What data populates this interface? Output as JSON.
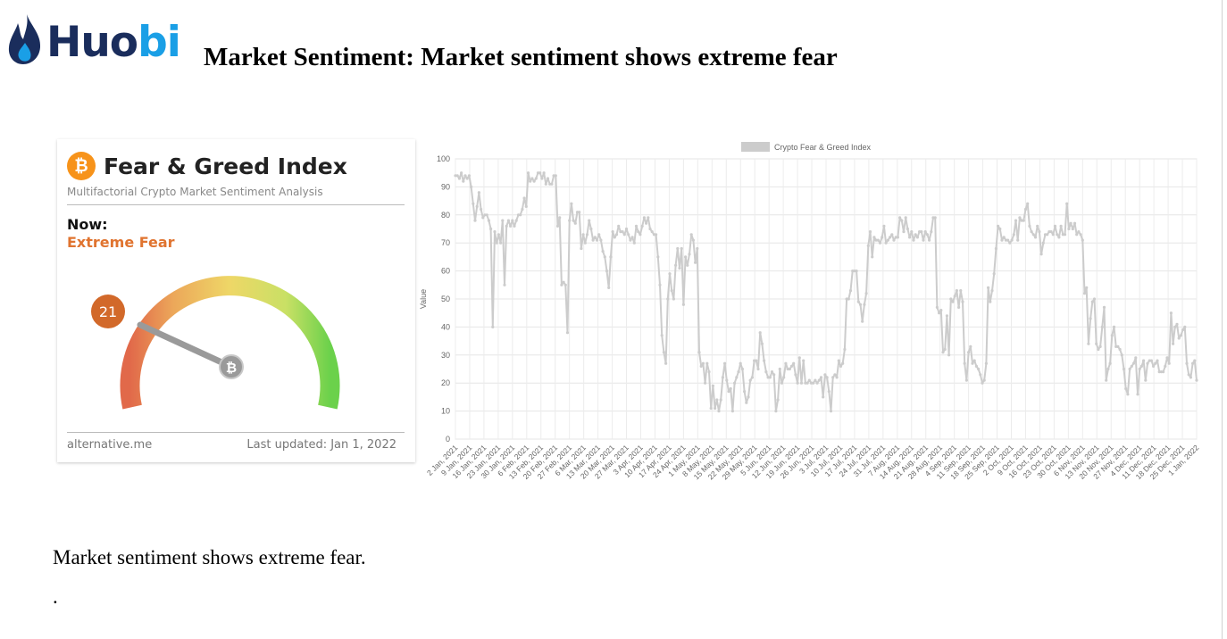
{
  "logo": {
    "name": "Huobi",
    "icon": "flame-drop-icon",
    "colors": {
      "primary": "#1a2d5c",
      "accent": "#1a9fe6"
    }
  },
  "slide": {
    "title": "Market Sentiment: Market sentiment shows extreme fear"
  },
  "fear_greed_card": {
    "title": "Fear & Greed Index",
    "subtitle": "Multifactorial Crypto Market Sentiment Analysis",
    "now_label": "Now:",
    "now_value": "Extreme Fear",
    "index_value": 21,
    "source": "alternative.me",
    "last_updated": "Last updated: Jan 1, 2022",
    "colors": {
      "accent": "#e07430",
      "badge": "#d2692a",
      "bitcoin": "#f7931a"
    }
  },
  "chart_data": {
    "type": "line",
    "legend": "Crypto Fear & Greed Index",
    "legend_position": "top",
    "ylabel": "Value",
    "ylim": [
      0,
      100
    ],
    "yticks": [
      0,
      10,
      20,
      30,
      40,
      50,
      60,
      70,
      80,
      90,
      100
    ],
    "grid": true,
    "color": "#cccccc",
    "x_tick_labels": [
      "2 Jan, 2021",
      "9 Jan, 2021",
      "16 Jan, 2021",
      "23 Jan, 2021",
      "30 Jan, 2021",
      "6 Feb, 2021",
      "13 Feb, 2021",
      "20 Feb, 2021",
      "27 Feb, 2021",
      "6 Mar, 2021",
      "13 Mar, 2021",
      "20 Mar, 2021",
      "27 Mar, 2021",
      "3 Apr, 2021",
      "10 Apr, 2021",
      "17 Apr, 2021",
      "24 Apr, 2021",
      "1 May, 2021",
      "8 May, 2021",
      "15 May, 2021",
      "22 May, 2021",
      "29 May, 2021",
      "5 Jun, 2021",
      "12 Jun, 2021",
      "19 Jun, 2021",
      "26 Jun, 2021",
      "3 Jul, 2021",
      "10 Jul, 2021",
      "17 Jul, 2021",
      "24 Jul, 2021",
      "31 Jul, 2021",
      "7 Aug, 2021",
      "14 Aug, 2021",
      "21 Aug, 2021",
      "28 Aug, 2021",
      "4 Sep, 2021",
      "11 Sep, 2021",
      "18 Sep, 2021",
      "25 Sep, 2021",
      "2 Oct, 2021",
      "9 Oct, 2021",
      "16 Oct, 2021",
      "23 Oct, 2021",
      "30 Oct, 2021",
      "6 Nov, 2021",
      "13 Nov, 2021",
      "20 Nov, 2021",
      "27 Nov, 2021",
      "4 Dec, 2021",
      "11 Dec, 2021",
      "18 Dec, 2021",
      "25 Dec, 2021",
      "1 Jan, 2022"
    ],
    "values": [
      [
        94,
        94,
        93,
        95,
        92,
        94,
        93,
        94,
        90,
        84,
        78,
        83,
        88,
        82,
        79,
        80,
        80,
        78,
        75,
        40,
        74,
        70,
        73,
        70,
        78,
        55,
        76,
        78,
        76,
        78,
        76,
        78,
        80,
        80,
        82,
        86,
        83,
        95,
        92,
        93,
        92,
        93,
        95,
        95,
        93,
        95,
        91,
        93,
        91,
        91,
        94
      ],
      [
        94,
        76,
        79,
        55,
        56,
        55,
        38,
        78,
        84,
        78,
        77,
        81,
        81,
        68,
        73,
        70,
        73,
        78,
        75,
        71,
        72,
        71,
        73,
        71,
        67,
        65,
        60,
        54,
        65,
        74,
        72,
        73,
        76,
        74,
        74,
        73,
        75,
        73,
        71,
        72,
        70,
        76,
        74,
        73,
        76,
        79,
        77,
        79,
        75,
        74,
        73
      ],
      [
        73,
        65,
        55,
        37,
        31,
        27,
        50,
        59,
        53,
        50,
        62,
        68,
        61,
        68,
        48,
        65,
        62,
        66,
        73,
        71,
        63,
        68,
        31,
        26,
        27,
        20,
        27,
        24,
        11,
        19,
        11,
        14,
        10,
        14,
        22,
        27,
        21,
        17,
        18,
        10,
        20,
        22,
        24,
        27,
        25,
        17,
        13,
        15,
        21,
        22,
        28
      ],
      [
        28,
        25,
        38,
        34,
        28,
        24,
        22,
        22,
        24,
        23,
        10,
        14,
        25,
        20,
        22,
        27,
        25,
        25,
        26,
        27,
        23,
        20,
        29,
        20,
        28,
        20,
        20,
        21,
        20,
        20,
        21,
        20,
        21,
        22,
        15,
        23,
        22,
        17,
        10,
        22,
        23,
        22,
        28,
        26,
        27,
        32,
        50,
        50,
        53,
        60,
        60
      ],
      [
        60,
        49,
        48,
        42,
        48,
        52,
        69,
        74,
        65,
        72,
        71,
        71,
        70,
        72,
        76,
        70,
        71,
        72,
        73,
        71,
        72,
        72,
        79,
        78,
        74,
        79,
        75,
        72,
        74,
        71,
        73,
        72,
        74,
        74,
        71,
        74,
        73,
        71,
        74,
        79,
        79,
        47,
        45,
        46,
        31,
        32,
        44,
        30,
        50,
        49,
        51
      ],
      [
        53,
        47,
        53,
        49,
        27,
        21,
        31,
        33,
        27,
        28,
        26,
        25,
        23,
        20,
        21,
        27,
        54,
        49,
        53,
        59,
        68,
        76,
        75,
        71,
        72,
        71,
        71,
        70,
        71,
        73,
        78,
        71,
        79,
        78,
        78,
        82,
        84,
        76,
        74,
        73,
        72,
        76,
        74,
        66,
        70,
        73,
        73,
        74,
        74,
        73,
        76
      ],
      [
        73,
        72,
        76,
        73,
        73,
        84,
        75,
        77,
        75,
        77,
        73,
        74,
        73,
        71,
        52,
        54,
        34,
        43,
        49,
        50,
        34,
        32,
        33,
        40,
        47,
        21,
        25,
        27,
        37,
        40,
        33,
        33,
        32,
        30,
        25,
        18,
        16,
        25,
        26,
        27,
        29,
        16,
        25,
        26,
        28,
        21,
        27,
        28,
        28,
        26,
        27
      ],
      [
        28,
        24,
        24,
        24,
        26,
        29,
        27,
        45,
        34,
        40,
        41,
        36,
        37,
        39,
        40,
        27,
        23,
        22,
        27,
        28,
        21
      ]
    ]
  },
  "body_text": {
    "paragraph": "Market sentiment shows extreme fear.",
    "dot": "."
  }
}
